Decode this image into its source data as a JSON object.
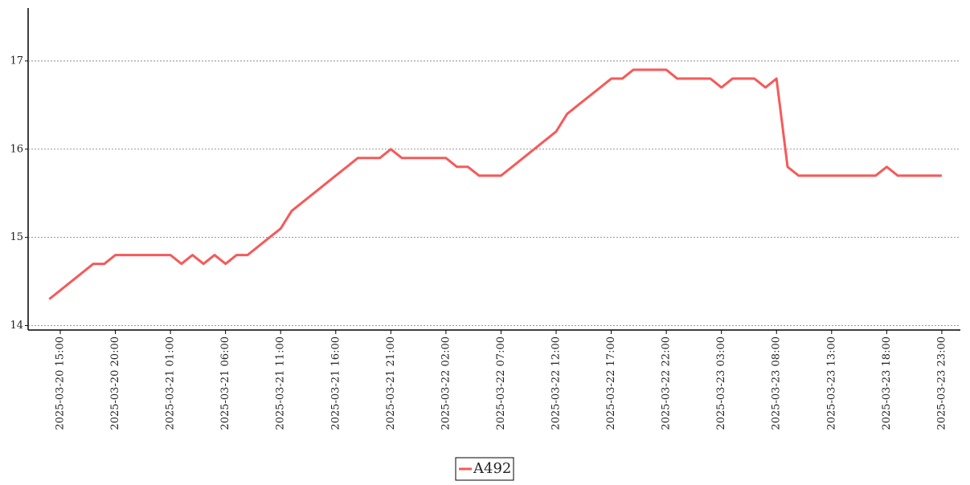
{
  "chart_data": {
    "type": "line",
    "x": [
      "2025-03-20 14:00",
      "2025-03-20 15:00",
      "2025-03-20 16:00",
      "2025-03-20 17:00",
      "2025-03-20 18:00",
      "2025-03-20 19:00",
      "2025-03-20 20:00",
      "2025-03-20 21:00",
      "2025-03-20 22:00",
      "2025-03-20 23:00",
      "2025-03-21 00:00",
      "2025-03-21 01:00",
      "2025-03-21 02:00",
      "2025-03-21 03:00",
      "2025-03-21 04:00",
      "2025-03-21 05:00",
      "2025-03-21 06:00",
      "2025-03-21 07:00",
      "2025-03-21 08:00",
      "2025-03-21 09:00",
      "2025-03-21 10:00",
      "2025-03-21 11:00",
      "2025-03-21 12:00",
      "2025-03-21 13:00",
      "2025-03-21 14:00",
      "2025-03-21 15:00",
      "2025-03-21 16:00",
      "2025-03-21 17:00",
      "2025-03-21 18:00",
      "2025-03-21 19:00",
      "2025-03-21 20:00",
      "2025-03-21 21:00",
      "2025-03-21 22:00",
      "2025-03-21 23:00",
      "2025-03-22 00:00",
      "2025-03-22 01:00",
      "2025-03-22 02:00",
      "2025-03-22 03:00",
      "2025-03-22 04:00",
      "2025-03-22 05:00",
      "2025-03-22 06:00",
      "2025-03-22 07:00",
      "2025-03-22 08:00",
      "2025-03-22 09:00",
      "2025-03-22 10:00",
      "2025-03-22 11:00",
      "2025-03-22 12:00",
      "2025-03-22 13:00",
      "2025-03-22 14:00",
      "2025-03-22 15:00",
      "2025-03-22 16:00",
      "2025-03-22 17:00",
      "2025-03-22 18:00",
      "2025-03-22 19:00",
      "2025-03-22 20:00",
      "2025-03-22 21:00",
      "2025-03-22 22:00",
      "2025-03-22 23:00",
      "2025-03-23 00:00",
      "2025-03-23 01:00",
      "2025-03-23 02:00",
      "2025-03-23 03:00",
      "2025-03-23 04:00",
      "2025-03-23 05:00",
      "2025-03-23 06:00",
      "2025-03-23 07:00",
      "2025-03-23 08:00",
      "2025-03-23 09:00",
      "2025-03-23 10:00",
      "2025-03-23 11:00",
      "2025-03-23 12:00",
      "2025-03-23 13:00",
      "2025-03-23 14:00",
      "2025-03-23 15:00",
      "2025-03-23 16:00",
      "2025-03-23 17:00",
      "2025-03-23 18:00",
      "2025-03-23 19:00",
      "2025-03-23 20:00",
      "2025-03-23 21:00",
      "2025-03-23 22:00",
      "2025-03-23 23:00"
    ],
    "series": [
      {
        "name": "A492",
        "color": "#f55a5a",
        "values": [
          14.3,
          14.4,
          14.5,
          14.6,
          14.7,
          14.7,
          14.8,
          14.8,
          14.8,
          14.8,
          14.8,
          14.8,
          14.7,
          14.8,
          14.7,
          14.8,
          14.7,
          14.8,
          14.8,
          14.9,
          15.0,
          15.1,
          15.3,
          15.4,
          15.5,
          15.6,
          15.7,
          15.8,
          15.9,
          15.9,
          15.9,
          16.0,
          15.9,
          15.9,
          15.9,
          15.9,
          15.9,
          15.8,
          15.8,
          15.7,
          15.7,
          15.7,
          15.8,
          15.9,
          16.0,
          16.1,
          16.2,
          16.4,
          16.5,
          16.6,
          16.7,
          16.8,
          16.8,
          16.9,
          16.9,
          16.9,
          16.9,
          16.8,
          16.8,
          16.8,
          16.8,
          16.7,
          16.8,
          16.8,
          16.8,
          16.7,
          16.8,
          15.8,
          15.7,
          15.7,
          15.7,
          15.7,
          15.7,
          15.7,
          15.7,
          15.7,
          15.8,
          15.7,
          15.7,
          15.7,
          15.7,
          15.7
        ]
      }
    ],
    "xlim": [
      "2025-03-20 12:05",
      "2025-03-24 00:41"
    ],
    "xticks": [
      "2025-03-20 15:00",
      "2025-03-20 20:00",
      "2025-03-21 01:00",
      "2025-03-21 06:00",
      "2025-03-21 11:00",
      "2025-03-21 16:00",
      "2025-03-21 21:00",
      "2025-03-22 02:00",
      "2025-03-22 07:00",
      "2025-03-22 12:00",
      "2025-03-22 17:00",
      "2025-03-22 22:00",
      "2025-03-23 03:00",
      "2025-03-23 08:00",
      "2025-03-23 13:00",
      "2025-03-23 18:00",
      "2025-03-23 23:00"
    ],
    "ylim": [
      13.95,
      17.6
    ],
    "yticks": [
      14,
      15,
      16,
      17
    ],
    "grid": true
  }
}
